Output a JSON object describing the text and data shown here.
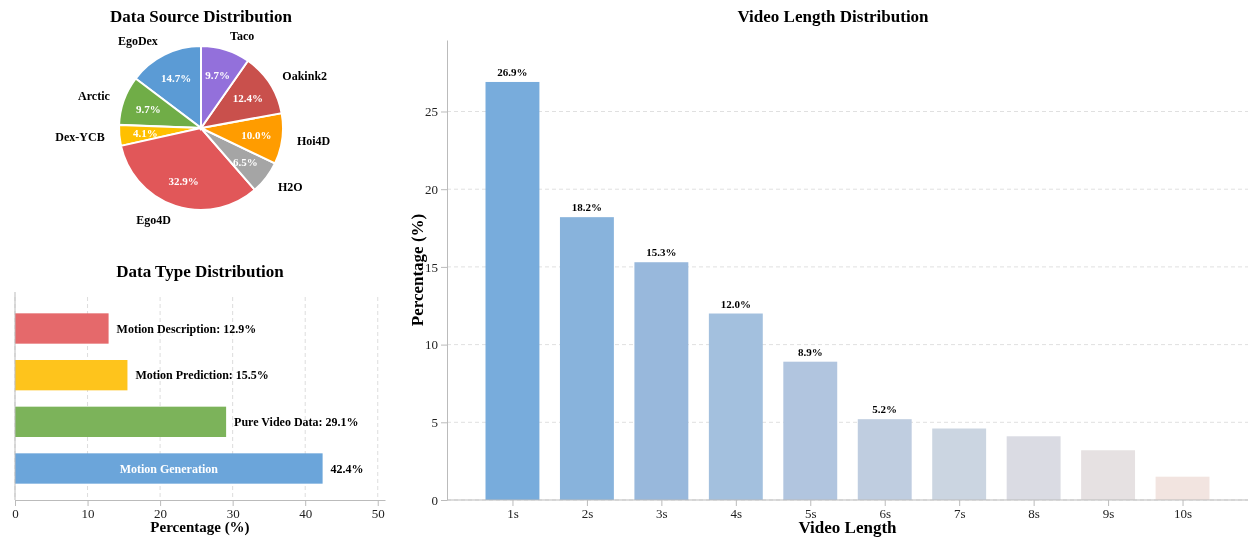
{
  "chart_data": [
    {
      "type": "pie",
      "title": "Data Source Distribution",
      "categories": [
        "EgoDex",
        "Arctic",
        "Dex-YCB",
        "Ego4D",
        "H2O",
        "Hoi4D",
        "Oakink2",
        "Taco"
      ],
      "values": [
        14.7,
        9.7,
        4.1,
        32.9,
        6.5,
        10.0,
        12.4,
        9.7
      ],
      "colors": [
        "#5b9bd5",
        "#70ad47",
        "#ffc000",
        "#e15759",
        "#a5a5a5",
        "#ff9c00",
        "#c9504c",
        "#9370db"
      ],
      "value_labels": [
        "14.7%",
        "9.7%",
        "4.1%",
        "32.9%",
        "6.5%",
        "10.0%",
        "12.4%",
        "9.7%"
      ]
    },
    {
      "type": "bar",
      "orientation": "horizontal",
      "title": "Data Type Distribution",
      "xlabel": "Percentage (%)",
      "categories": [
        null,
        null,
        null,
        "Motion Generation"
      ],
      "values": [
        12.9,
        15.5,
        29.1,
        42.4
      ],
      "colors": [
        "#e5696b",
        "#fec41c",
        "#7cb35a",
        "#6ba5da"
      ],
      "value_labels": [
        "Motion Description: 12.9%",
        "Motion Prediction: 15.5%",
        "Pure Video Data: 29.1%",
        "42.4%"
      ],
      "xlim": [
        0,
        51
      ],
      "xticks": [
        0,
        10,
        20,
        30,
        40,
        50
      ],
      "grid": "x",
      "tick_labels": "x"
    },
    {
      "type": "bar",
      "title": "Video Length Distribution",
      "xlabel": "Video Length",
      "ylabel": "Percentage (%)",
      "categories": [
        "1s",
        "2s",
        "3s",
        "4s",
        "5s",
        "6s",
        "7s",
        "8s",
        "9s",
        "10s"
      ],
      "values": [
        26.9,
        18.2,
        15.3,
        12.0,
        8.9,
        5.2,
        4.6,
        4.1,
        3.2,
        1.5
      ],
      "colors": [
        "#78acdc",
        "#88b3dc",
        "#98b8dc",
        "#a3c0de",
        "#b1c5df",
        "#bfcde0",
        "#cbd5e1",
        "#dadbe3",
        "#e6e1e2",
        "#f2e4e0"
      ],
      "value_labels": [
        "26.9%",
        "18.2%",
        "15.3%",
        "12.0%",
        "8.9%",
        "5.2%",
        null,
        null,
        null,
        null
      ],
      "ylim": [
        0,
        29.6
      ],
      "yticks": [
        0,
        5,
        10,
        15,
        20,
        25
      ],
      "grid": "y"
    }
  ]
}
